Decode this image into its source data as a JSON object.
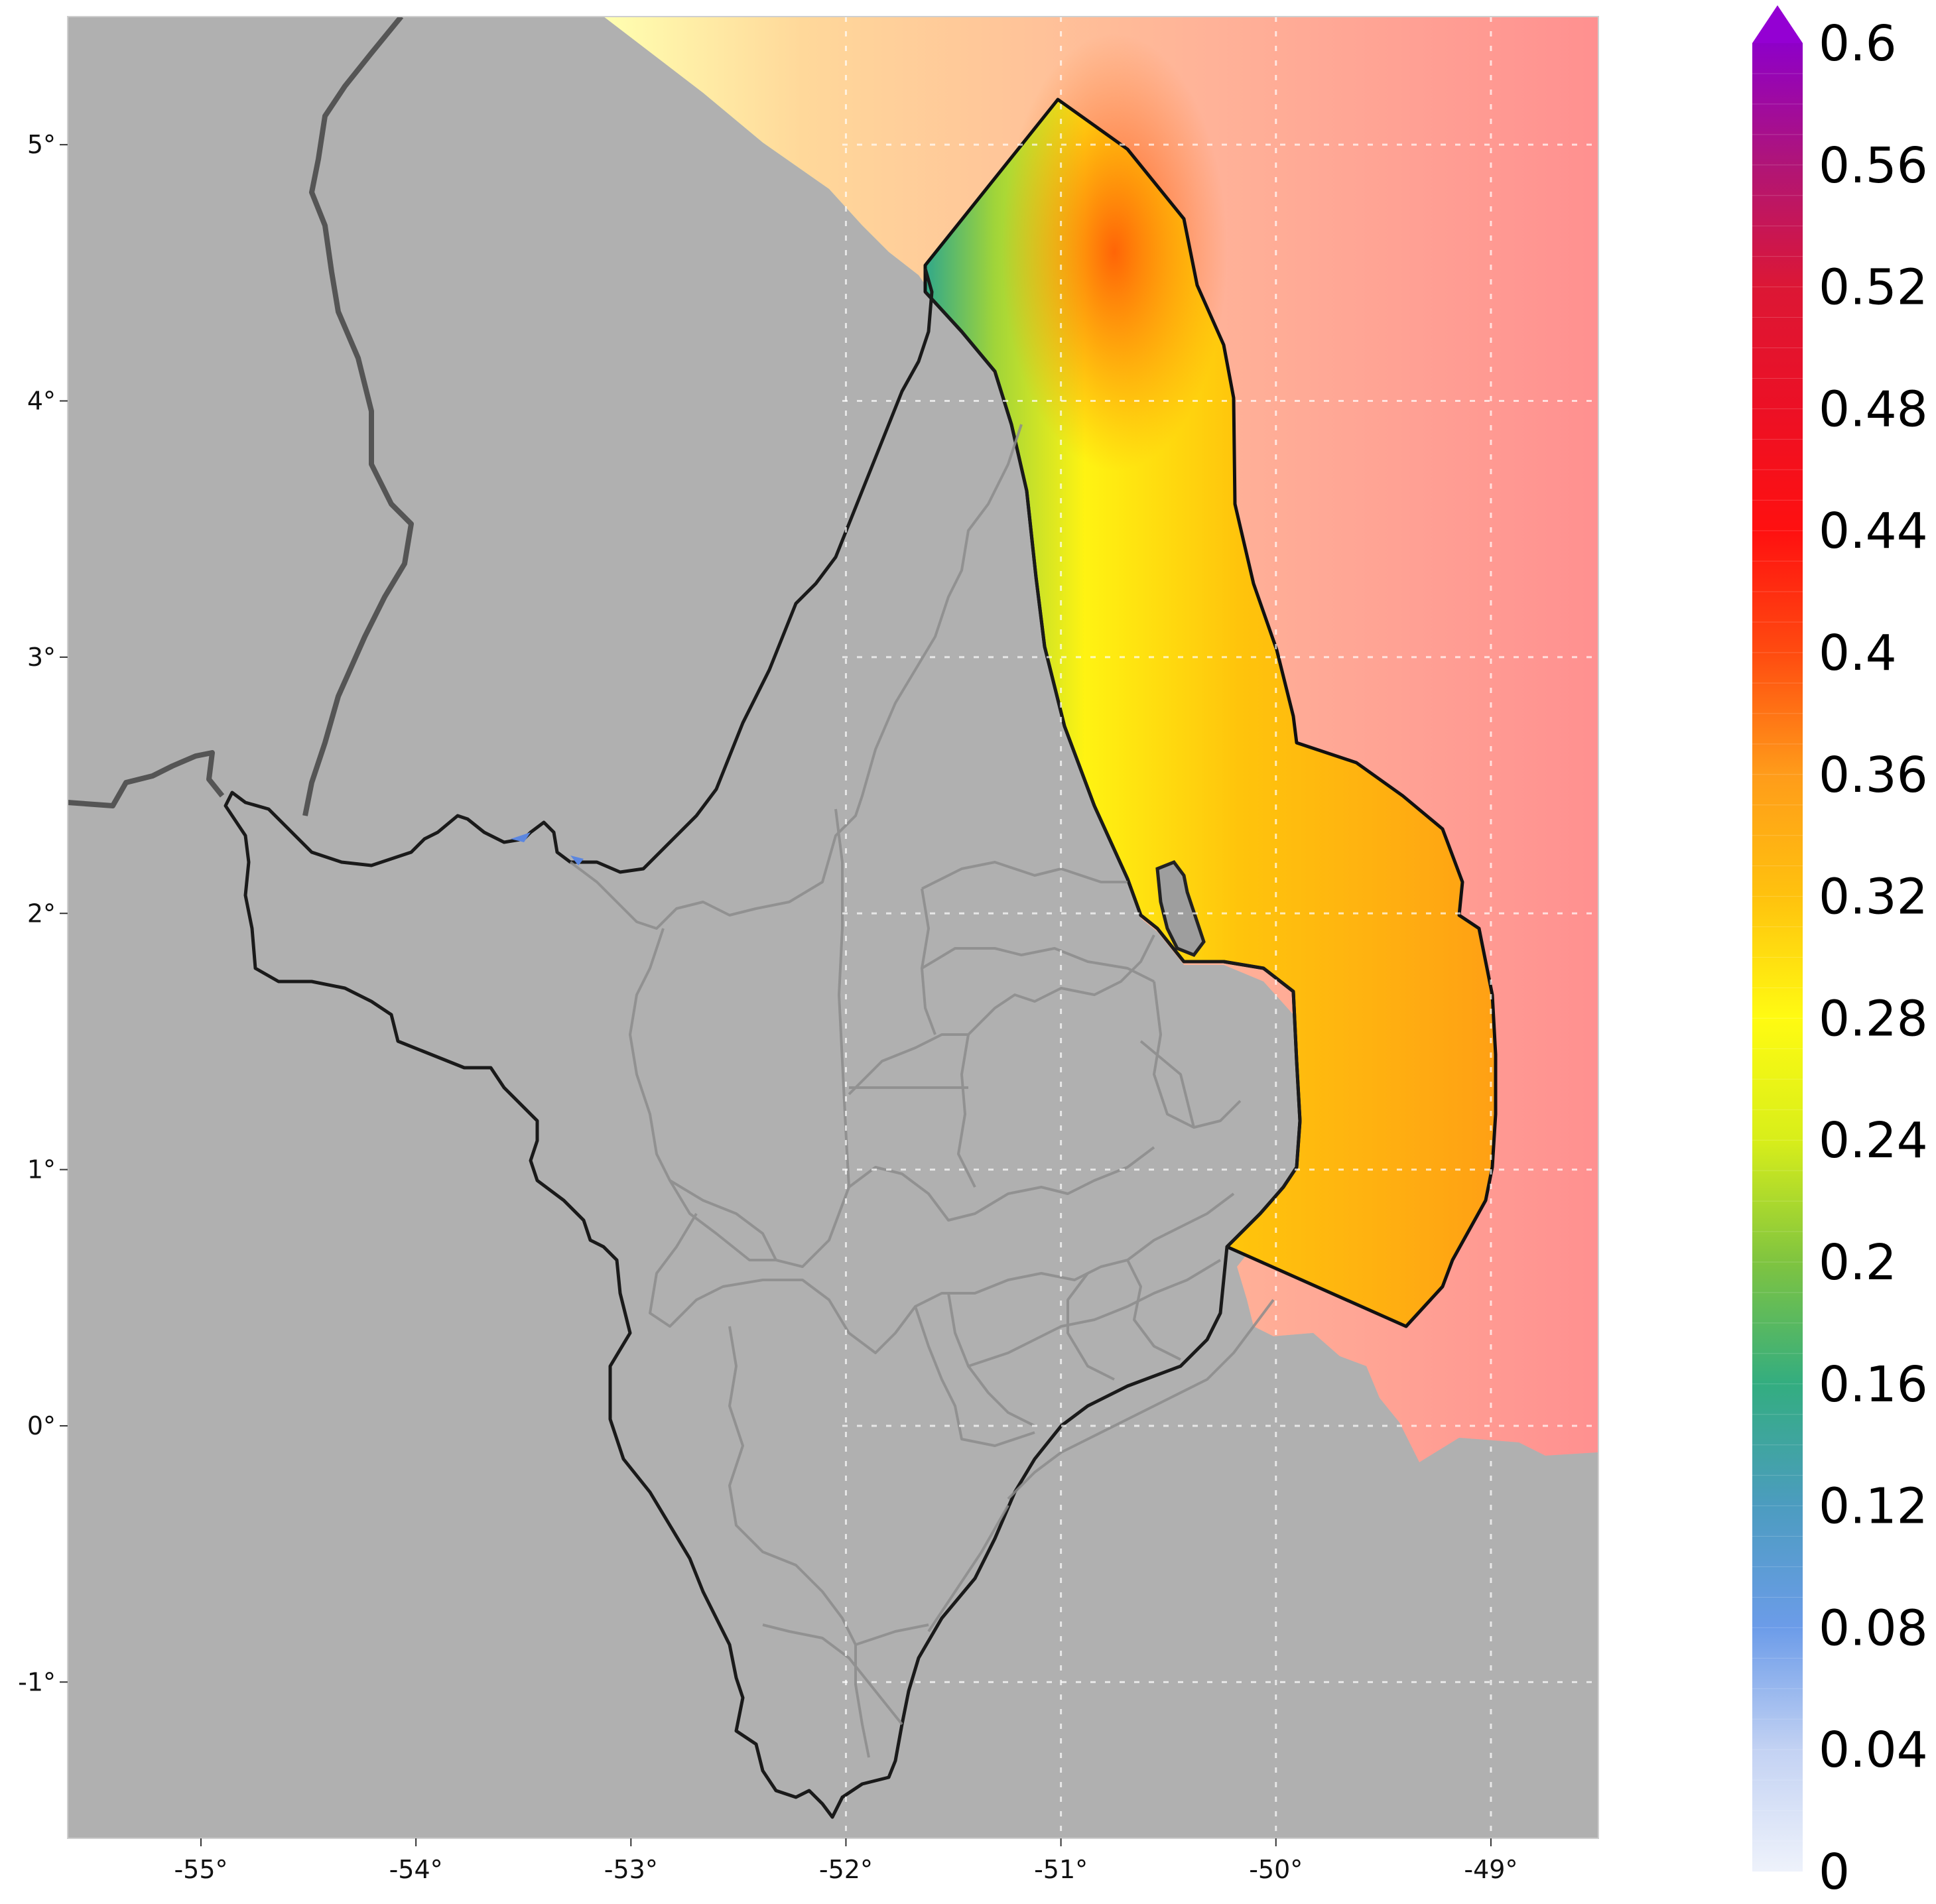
{
  "map": {
    "x_axis": {
      "ticks": [
        {
          "value": -55,
          "label": "-55°"
        },
        {
          "value": -54,
          "label": "-54°"
        },
        {
          "value": -53,
          "label": "-53°"
        },
        {
          "value": -52,
          "label": "-52°"
        },
        {
          "value": -51,
          "label": "-51°"
        },
        {
          "value": -50,
          "label": "-50°"
        },
        {
          "value": -49,
          "label": "-49°"
        }
      ],
      "range": [
        -55.62,
        -48.5
      ]
    },
    "y_axis": {
      "ticks": [
        {
          "value": 5,
          "label": "5°"
        },
        {
          "value": 4,
          "label": "4°"
        },
        {
          "value": 3,
          "label": "3°"
        },
        {
          "value": 2,
          "label": "2°"
        },
        {
          "value": 1,
          "label": "1°"
        },
        {
          "value": 0,
          "label": "0°"
        },
        {
          "value": -1,
          "label": "-1°"
        }
      ],
      "range": [
        -1.61,
        5.5
      ]
    },
    "gridlines": "dotted, white",
    "land_color": "#b3b3b3",
    "highlighted_region": "outlined coastal ocean zone"
  },
  "colorbar": {
    "min": 0,
    "max": 0.6,
    "extend": "max",
    "extend_color": "#9400d3",
    "labels": [
      "0.6",
      "0.56",
      "0.52",
      "0.48",
      "0.44",
      "0.4",
      "0.36",
      "0.32",
      "0.28",
      "0.24",
      "0.2",
      "0.16",
      "0.12",
      "0.08",
      "0.04",
      "0"
    ],
    "stops": [
      {
        "value": 0.0,
        "color": "#eef2fb"
      },
      {
        "value": 0.04,
        "color": "#c3d2f3"
      },
      {
        "value": 0.08,
        "color": "#6c9ce9"
      },
      {
        "value": 0.12,
        "color": "#4c9cc0"
      },
      {
        "value": 0.16,
        "color": "#33ad80"
      },
      {
        "value": 0.2,
        "color": "#7fc440"
      },
      {
        "value": 0.24,
        "color": "#d8ee1a"
      },
      {
        "value": 0.28,
        "color": "#fffb12"
      },
      {
        "value": 0.32,
        "color": "#ffc20e"
      },
      {
        "value": 0.36,
        "color": "#ff9c1a"
      },
      {
        "value": 0.4,
        "color": "#ff4b10"
      },
      {
        "value": 0.44,
        "color": "#ff1010"
      },
      {
        "value": 0.48,
        "color": "#ec1025"
      },
      {
        "value": 0.52,
        "color": "#dc1735"
      },
      {
        "value": 0.56,
        "color": "#b01577"
      },
      {
        "value": 0.6,
        "color": "#8e00c8"
      }
    ]
  }
}
